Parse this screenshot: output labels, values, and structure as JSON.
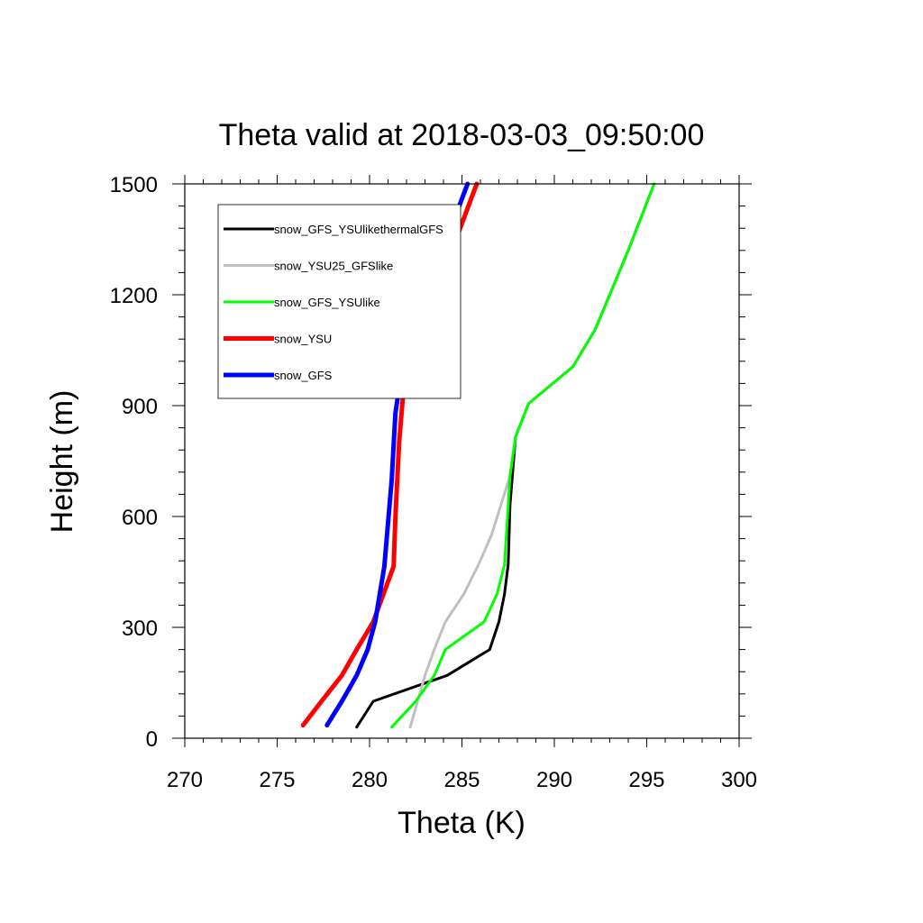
{
  "chart_data": {
    "type": "line",
    "title": "Theta valid at 2018-03-03_09:50:00",
    "xlabel": "Theta (K)",
    "ylabel": "Height (m)",
    "xlim": [
      270,
      300
    ],
    "ylim": [
      0,
      1500
    ],
    "xticks": [
      270,
      275,
      280,
      285,
      290,
      295,
      300
    ],
    "yticks": [
      0,
      300,
      600,
      900,
      1200,
      1500
    ],
    "legend_position": "top-left",
    "grid": false,
    "series": [
      {
        "name": "snow_GFS_YSUlikethermalGFS",
        "color": "#000000",
        "x": [
          279.3,
          280.2,
          284.2,
          286.5,
          287.0,
          287.3,
          287.5,
          287.6,
          287.9,
          288.6,
          291.0,
          292.2,
          293.0,
          294.0,
          295.4
        ],
        "y": [
          30,
          100,
          170,
          240,
          315,
          390,
          470,
          630,
          815,
          905,
          1005,
          1105,
          1200,
          1320,
          1500
        ]
      },
      {
        "name": "snow_YSU25_GFSlike",
        "color": "#c0c0c0",
        "x": [
          282.2,
          282.6,
          283.0,
          283.5,
          284.1,
          285.1,
          285.9,
          286.6,
          287.1,
          287.6,
          287.9,
          288.6,
          291.0,
          292.2,
          293.0,
          294.0,
          295.4
        ],
        "y": [
          30,
          100,
          170,
          240,
          315,
          390,
          470,
          550,
          630,
          710,
          815,
          905,
          1005,
          1105,
          1200,
          1320,
          1500
        ]
      },
      {
        "name": "snow_GFS_YSUlike",
        "color": "#00ff00",
        "x": [
          281.2,
          282.5,
          283.5,
          284.1,
          286.2,
          286.9,
          287.3,
          287.5,
          287.6,
          287.9,
          288.6,
          291.0,
          292.2,
          293.0,
          294.0,
          295.4
        ],
        "y": [
          30,
          100,
          170,
          240,
          315,
          390,
          470,
          630,
          710,
          815,
          905,
          1005,
          1105,
          1200,
          1320,
          1500
        ]
      },
      {
        "name": "snow_YSU",
        "color": "#ff0000",
        "x": [
          276.4,
          277.4,
          278.5,
          279.3,
          280.2,
          281.3,
          281.4,
          281.6,
          281.9,
          282.4,
          283.2,
          284.3,
          285.8
        ],
        "y": [
          35,
          100,
          170,
          240,
          315,
          465,
          600,
          800,
          980,
          1090,
          1190,
          1300,
          1500
        ]
      },
      {
        "name": "snow_GFS",
        "color": "#0000ff",
        "x": [
          277.7,
          278.5,
          279.3,
          279.9,
          280.3,
          280.8,
          281.2,
          281.4,
          281.7,
          282.2,
          282.9,
          283.8,
          285.3
        ],
        "y": [
          35,
          100,
          170,
          240,
          315,
          465,
          700,
          880,
          980,
          1090,
          1190,
          1300,
          1500
        ]
      }
    ]
  }
}
